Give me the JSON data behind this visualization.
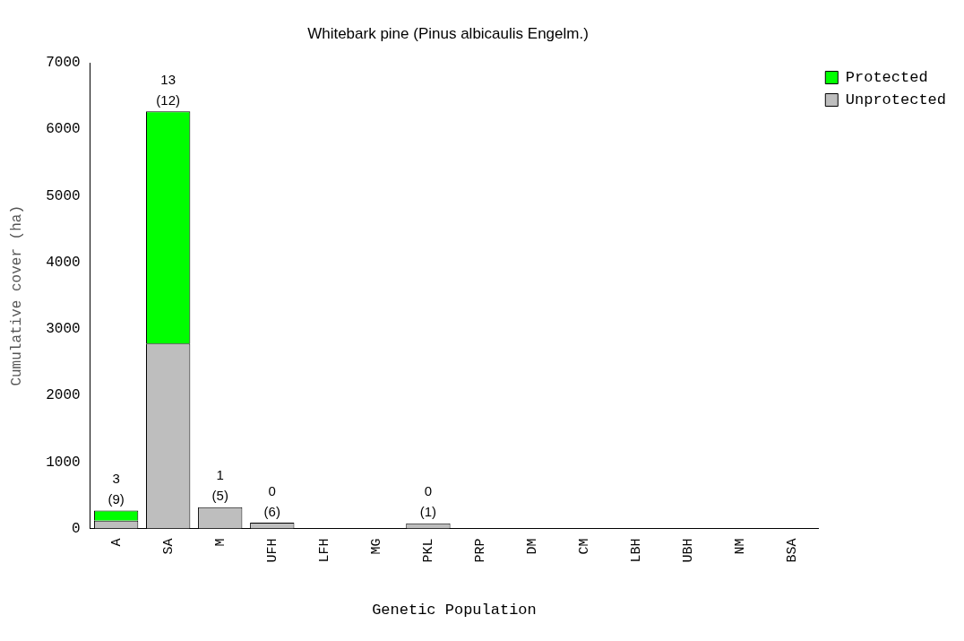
{
  "chart_data": {
    "type": "bar",
    "title": "Whitebark pine (Pinus albicaulis Engelm.)",
    "xlabel": "Genetic Population",
    "ylabel": "Cumulative cover (ha)",
    "categories": [
      "A",
      "SA",
      "M",
      "UFH",
      "LFH",
      "MG",
      "PKL",
      "PRP",
      "DM",
      "CM",
      "LBH",
      "UBH",
      "NM",
      "BSA"
    ],
    "stacked": true,
    "series": [
      {
        "name": "Unprotected",
        "color": "#bebebe",
        "values": [
          120,
          2780,
          320,
          90,
          0,
          0,
          80,
          0,
          0,
          0,
          0,
          0,
          0,
          0
        ]
      },
      {
        "name": "Protected",
        "color": "#00ff00",
        "values": [
          150,
          3490,
          0,
          0,
          0,
          0,
          0,
          0,
          0,
          0,
          0,
          0,
          0,
          0
        ]
      }
    ],
    "ylim": [
      0,
      7000
    ],
    "yticks": [
      0,
      1000,
      2000,
      3000,
      4000,
      5000,
      6000,
      7000
    ],
    "grid": false,
    "legend": "right",
    "annotations": [
      {
        "text": "3\n(9)",
        "x": "A",
        "y": 270
      },
      {
        "text": "13\n(12)",
        "x": "SA",
        "y": 6270
      },
      {
        "text": "1\n(5)",
        "x": "M",
        "y": 320
      },
      {
        "text": "0\n(6)",
        "x": "UFH",
        "y": 90
      },
      {
        "text": "0\n(1)",
        "x": "PKL",
        "y": 80
      }
    ]
  }
}
